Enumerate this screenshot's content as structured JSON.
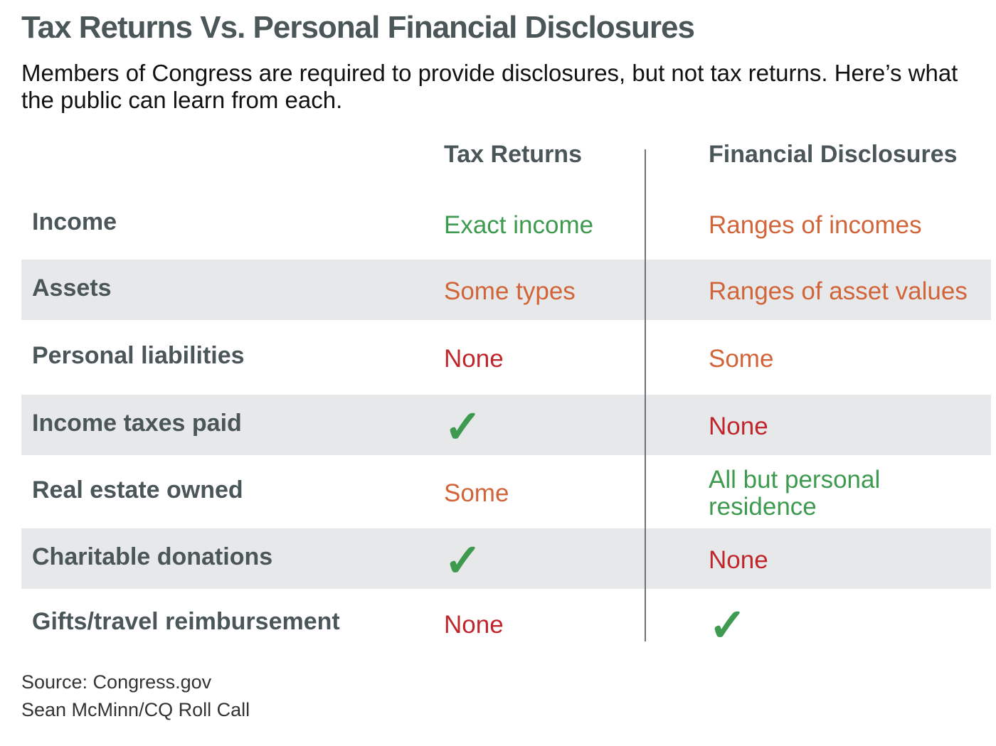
{
  "header": {
    "title": "Tax Returns Vs. Personal Financial Disclosures",
    "subtitle": "Members of Congress are required to provide disclosures, but not tax returns. Here’s what the public can learn from each."
  },
  "table": {
    "columns": [
      "Tax Returns",
      "Financial Disclosures"
    ],
    "shaded_color": "#e7e8e9",
    "rows": [
      {
        "label": "Income",
        "shaded": false,
        "cells": [
          {
            "text": "Exact income",
            "color": "#3d9a4f"
          },
          {
            "text": "Ranges of incomes",
            "color": "#d2643a"
          }
        ]
      },
      {
        "label": "Assets",
        "shaded": true,
        "cells": [
          {
            "text": "Some types",
            "color": "#d2643a"
          },
          {
            "text": "Ranges of asset values",
            "color": "#d2643a"
          }
        ]
      },
      {
        "label": "Personal liabilities",
        "shaded": false,
        "cells": [
          {
            "text": "None",
            "color": "#c0272d"
          },
          {
            "text": "Some",
            "color": "#d2643a"
          }
        ]
      },
      {
        "label": "Income taxes paid",
        "shaded": true,
        "cells": [
          {
            "text": "✓",
            "color": "#3d9a4f"
          },
          {
            "text": "None",
            "color": "#c0272d"
          }
        ]
      },
      {
        "label": "Real estate owned",
        "shaded": false,
        "cells": [
          {
            "text": "Some",
            "color": "#d2643a"
          },
          {
            "text": "All but personal residence",
            "color": "#3d9a4f"
          }
        ]
      },
      {
        "label": "Charitable donations",
        "shaded": true,
        "cells": [
          {
            "text": "✓",
            "color": "#3d9a4f"
          },
          {
            "text": "None",
            "color": "#c0272d"
          }
        ]
      },
      {
        "label": "Gifts/travel reimbursement",
        "shaded": false,
        "cells": [
          {
            "text": "None",
            "color": "#c0272d"
          },
          {
            "text": "✓",
            "color": "#3d9a4f"
          }
        ]
      }
    ]
  },
  "footer": {
    "source": "Source: Congress.gov",
    "credit": "Sean McMinn/CQ Roll Call"
  }
}
